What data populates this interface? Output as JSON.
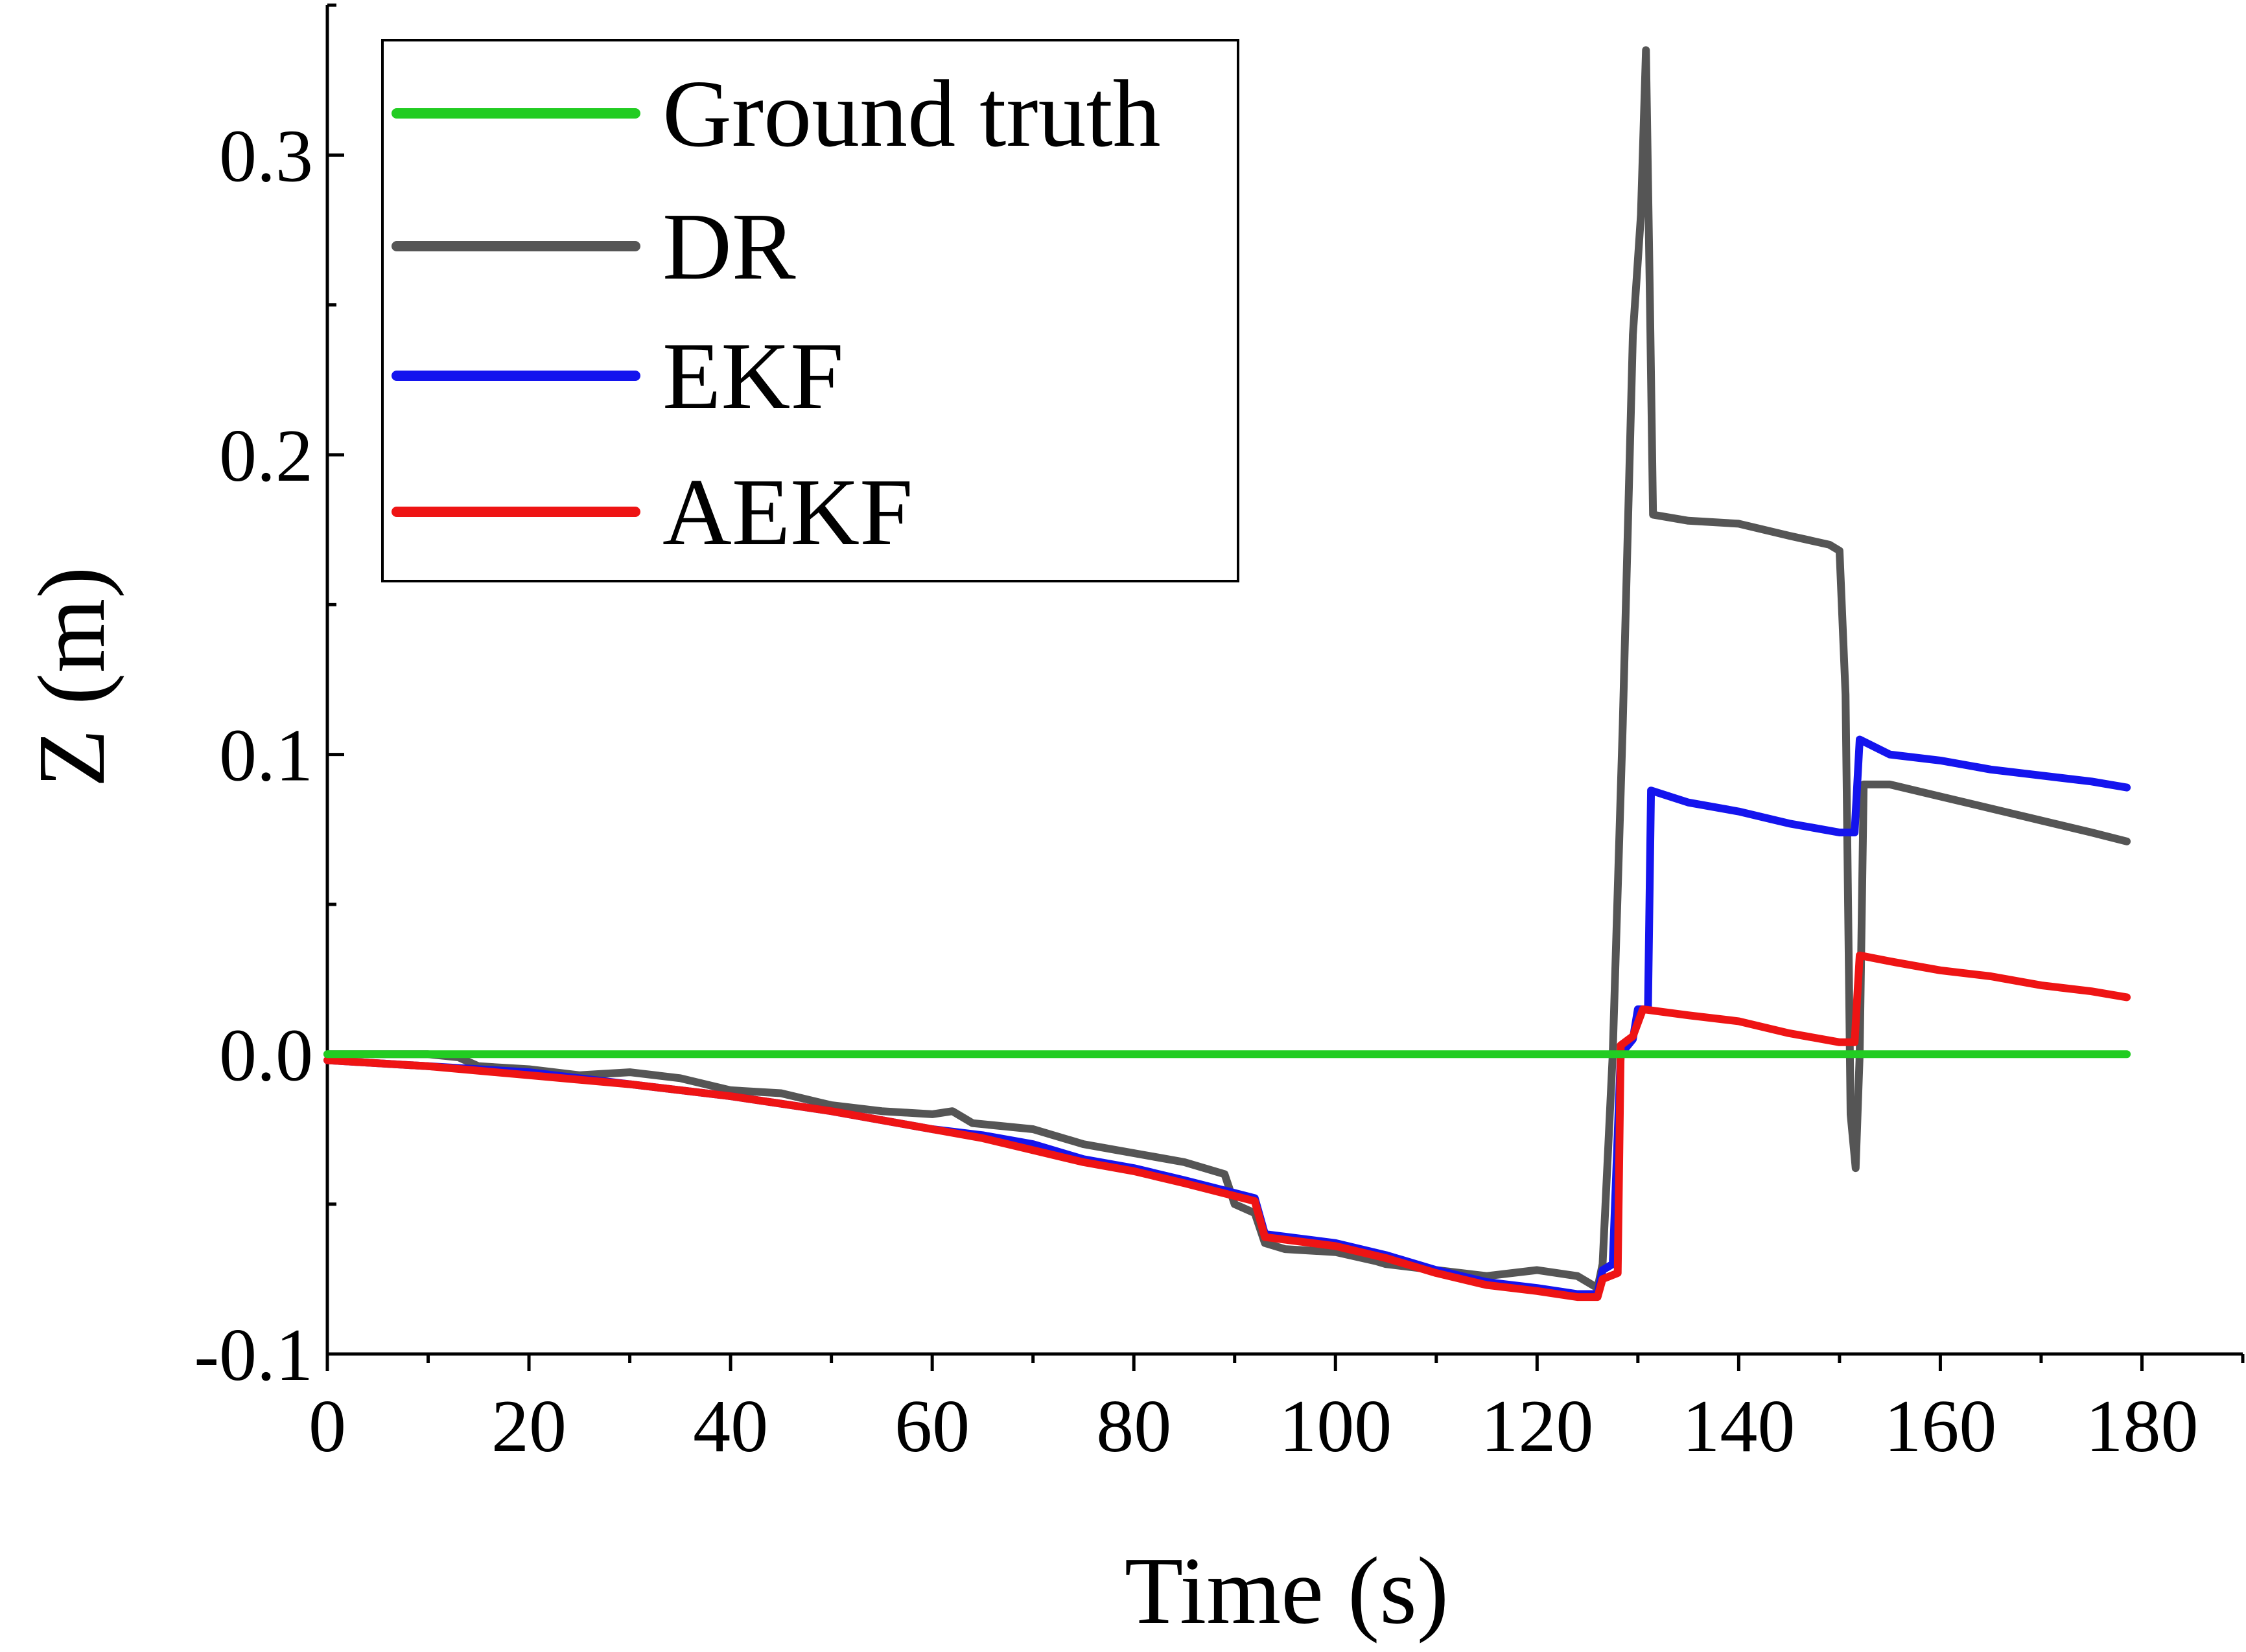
{
  "chart_data": {
    "type": "line",
    "title": "",
    "xlabel": "Time (s)",
    "ylabel": "Z (m)",
    "xlim": [
      0,
      190
    ],
    "ylim": [
      -0.1,
      0.35
    ],
    "xticks": [
      0,
      20,
      40,
      60,
      80,
      100,
      120,
      140,
      160,
      180
    ],
    "xtick_labels": [
      "0",
      "20",
      "40",
      "60",
      "80",
      "100",
      "120",
      "140",
      "160",
      "180"
    ],
    "yticks": [
      -0.1,
      0.0,
      0.1,
      0.2,
      0.3
    ],
    "ytick_labels": [
      "-0.1",
      "0.0",
      "0.1",
      "0.2",
      "0.3"
    ],
    "legend_position": "top-left",
    "series": [
      {
        "name": "Ground truth",
        "color": "#22cc22",
        "points": [
          [
            0,
            0.0
          ],
          [
            178.5,
            0.0
          ]
        ]
      },
      {
        "name": "DR",
        "color": "#555555",
        "points": [
          [
            0,
            0.0
          ],
          [
            5,
            0.0
          ],
          [
            10,
            0.0
          ],
          [
            13,
            -0.001
          ],
          [
            15,
            -0.004
          ],
          [
            20,
            -0.005
          ],
          [
            25,
            -0.007
          ],
          [
            30,
            -0.006
          ],
          [
            35,
            -0.008
          ],
          [
            40,
            -0.012
          ],
          [
            45,
            -0.013
          ],
          [
            50,
            -0.017
          ],
          [
            55,
            -0.019
          ],
          [
            60,
            -0.02
          ],
          [
            62,
            -0.019
          ],
          [
            64,
            -0.023
          ],
          [
            70,
            -0.025
          ],
          [
            75,
            -0.03
          ],
          [
            80,
            -0.033
          ],
          [
            85,
            -0.036
          ],
          [
            89,
            -0.04
          ],
          [
            90,
            -0.05
          ],
          [
            92,
            -0.053
          ],
          [
            93,
            -0.063
          ],
          [
            95,
            -0.065
          ],
          [
            100,
            -0.066
          ],
          [
            104,
            -0.069
          ],
          [
            105,
            -0.07
          ],
          [
            110,
            -0.072
          ],
          [
            115,
            -0.074
          ],
          [
            120,
            -0.072
          ],
          [
            124,
            -0.074
          ],
          [
            126,
            -0.078
          ],
          [
            126.5,
            -0.07
          ],
          [
            127.5,
            0.0
          ],
          [
            128.5,
            0.11
          ],
          [
            129.5,
            0.24
          ],
          [
            130.3,
            0.28
          ],
          [
            130.8,
            0.335
          ],
          [
            131.2,
            0.25
          ],
          [
            131.5,
            0.18
          ],
          [
            135,
            0.178
          ],
          [
            140,
            0.177
          ],
          [
            145,
            0.173
          ],
          [
            149,
            0.17
          ],
          [
            150,
            0.168
          ],
          [
            150.6,
            0.12
          ],
          [
            151.1,
            -0.02
          ],
          [
            151.6,
            -0.038
          ],
          [
            152.0,
            0.0
          ],
          [
            152.4,
            0.09
          ],
          [
            155,
            0.09
          ],
          [
            160,
            0.086
          ],
          [
            165,
            0.082
          ],
          [
            170,
            0.078
          ],
          [
            175,
            0.074
          ],
          [
            178.5,
            0.071
          ]
        ]
      },
      {
        "name": "EKF",
        "color": "#1414ee",
        "points": [
          [
            0,
            -0.002
          ],
          [
            10,
            -0.004
          ],
          [
            20,
            -0.006
          ],
          [
            30,
            -0.01
          ],
          [
            40,
            -0.014
          ],
          [
            50,
            -0.019
          ],
          [
            60,
            -0.025
          ],
          [
            65,
            -0.027
          ],
          [
            70,
            -0.03
          ],
          [
            75,
            -0.035
          ],
          [
            80,
            -0.038
          ],
          [
            85,
            -0.042
          ],
          [
            92,
            -0.048
          ],
          [
            93,
            -0.06
          ],
          [
            100,
            -0.063
          ],
          [
            105,
            -0.067
          ],
          [
            110,
            -0.072
          ],
          [
            115,
            -0.076
          ],
          [
            120,
            -0.078
          ],
          [
            124,
            -0.08
          ],
          [
            126,
            -0.08
          ],
          [
            126.5,
            -0.072
          ],
          [
            127.5,
            -0.07
          ],
          [
            128.3,
            0.0
          ],
          [
            129.5,
            0.005
          ],
          [
            130,
            0.015
          ],
          [
            131,
            0.015
          ],
          [
            131.3,
            0.088
          ],
          [
            135,
            0.084
          ],
          [
            140,
            0.081
          ],
          [
            145,
            0.077
          ],
          [
            150,
            0.074
          ],
          [
            151.5,
            0.074
          ],
          [
            152,
            0.105
          ],
          [
            155,
            0.1
          ],
          [
            160,
            0.098
          ],
          [
            165,
            0.095
          ],
          [
            170,
            0.093
          ],
          [
            175,
            0.091
          ],
          [
            178.5,
            0.089
          ]
        ]
      },
      {
        "name": "AEKF",
        "color": "#ee1414",
        "points": [
          [
            0,
            -0.002
          ],
          [
            10,
            -0.004
          ],
          [
            20,
            -0.007
          ],
          [
            30,
            -0.01
          ],
          [
            40,
            -0.014
          ],
          [
            50,
            -0.019
          ],
          [
            60,
            -0.025
          ],
          [
            65,
            -0.028
          ],
          [
            70,
            -0.032
          ],
          [
            75,
            -0.036
          ],
          [
            80,
            -0.039
          ],
          [
            85,
            -0.043
          ],
          [
            92,
            -0.049
          ],
          [
            93,
            -0.061
          ],
          [
            100,
            -0.064
          ],
          [
            105,
            -0.068
          ],
          [
            110,
            -0.073
          ],
          [
            115,
            -0.077
          ],
          [
            120,
            -0.079
          ],
          [
            124,
            -0.081
          ],
          [
            126,
            -0.081
          ],
          [
            126.5,
            -0.075
          ],
          [
            128,
            -0.073
          ],
          [
            128.3,
            0.003
          ],
          [
            129.5,
            0.006
          ],
          [
            130.5,
            0.015
          ],
          [
            135,
            0.013
          ],
          [
            140,
            0.011
          ],
          [
            145,
            0.007
          ],
          [
            150,
            0.004
          ],
          [
            151.5,
            0.004
          ],
          [
            152,
            0.033
          ],
          [
            155,
            0.031
          ],
          [
            160,
            0.028
          ],
          [
            165,
            0.026
          ],
          [
            170,
            0.023
          ],
          [
            175,
            0.021
          ],
          [
            178.5,
            0.019
          ]
        ]
      }
    ]
  }
}
